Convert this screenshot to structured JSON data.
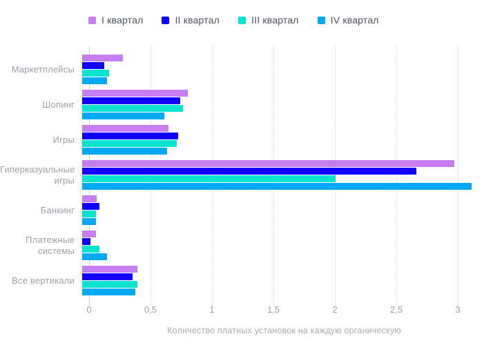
{
  "chart_data": {
    "type": "bar",
    "orientation": "horizontal",
    "categories": [
      "Маркетплейсы",
      "Шопинг",
      "Игры",
      "Гиперказуальные игры",
      "Банкинг",
      "Платежные системы",
      "Все вертикали"
    ],
    "series": [
      {
        "name": "I квартал",
        "color": "#c67ef0",
        "values": [
          0.33,
          0.86,
          0.7,
          3.03,
          0.12,
          0.11,
          0.45
        ]
      },
      {
        "name": "II квартал",
        "color": "#1000fb",
        "values": [
          0.18,
          0.8,
          0.78,
          2.72,
          0.14,
          0.07,
          0.41
        ]
      },
      {
        "name": "III квартал",
        "color": "#0be3d1",
        "values": [
          0.22,
          0.82,
          0.77,
          2.06,
          0.11,
          0.14,
          0.45
        ]
      },
      {
        "name": "IV квартал",
        "color": "#05a8f2",
        "values": [
          0.2,
          0.67,
          0.69,
          3.17,
          0.11,
          0.2,
          0.43
        ]
      }
    ],
    "xlabel": "Количество платных установок на каждую органическую",
    "xlim": [
      0,
      3.3
    ],
    "xticks": [
      0,
      0.5,
      1,
      1.5,
      2,
      2.5,
      3
    ],
    "xtick_labels": [
      "0",
      "0,5",
      "1",
      "1,5",
      "2",
      "2,5",
      "3"
    ],
    "grid": "vertical-dotted",
    "legend_position": "top",
    "colors": {
      "background": "#ffffff",
      "axis_line": "#c9cdd4",
      "gridline": "#d7dae0",
      "tick_text": "#99a0ab",
      "legend_text": "#49505e",
      "axis_title_text": "#a5abb5"
    }
  }
}
